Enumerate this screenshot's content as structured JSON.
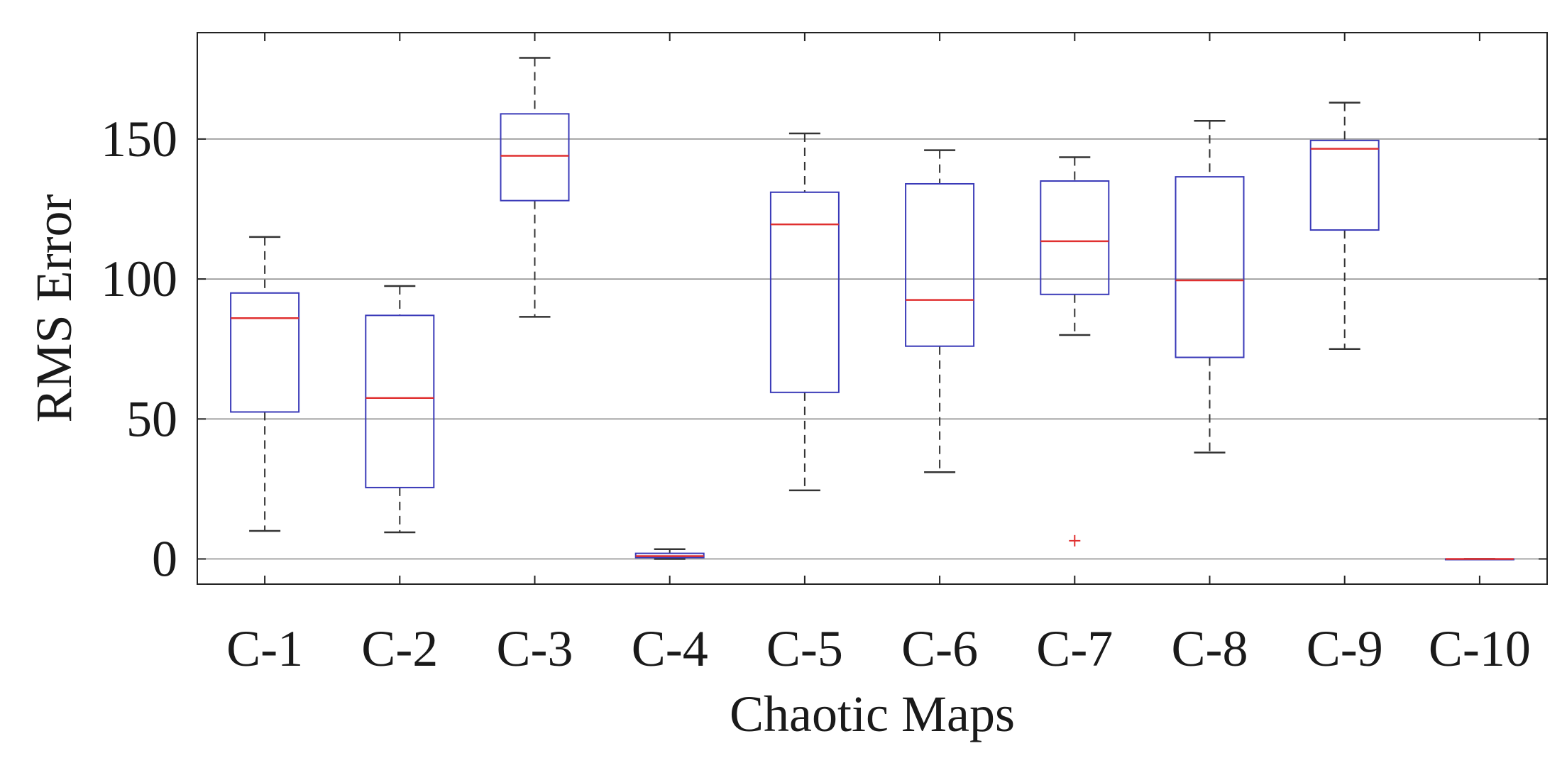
{
  "chart_data": {
    "type": "box",
    "title": "",
    "xlabel": "Chaotic Maps",
    "ylabel": "RMS Error",
    "ylim": [
      -9,
      188
    ],
    "yticks": [
      0,
      50,
      100,
      150
    ],
    "grid": "horizontal",
    "colors": {
      "box": "#3a3ab8",
      "median": "#e03030",
      "whisker": "#333333",
      "outlier": "#e03030",
      "grid": "#888888",
      "axis": "#222222"
    },
    "categories": [
      "C-1",
      "C-2",
      "C-3",
      "C-4",
      "C-5",
      "C-6",
      "C-7",
      "C-8",
      "C-9",
      "C-10"
    ],
    "boxes": [
      {
        "label": "C-1",
        "min": 10,
        "q1": 52.5,
        "median": 86,
        "q3": 95,
        "max": 115,
        "outliers": []
      },
      {
        "label": "C-2",
        "min": 9.5,
        "q1": 25.5,
        "median": 57.5,
        "q3": 87,
        "max": 97.5,
        "outliers": []
      },
      {
        "label": "C-3",
        "min": 86.5,
        "q1": 128,
        "median": 144,
        "q3": 159,
        "max": 179,
        "outliers": []
      },
      {
        "label": "C-4",
        "min": 0,
        "q1": 0.5,
        "median": 1,
        "q3": 2,
        "max": 3.5,
        "outliers": []
      },
      {
        "label": "C-5",
        "min": 24.5,
        "q1": 59.5,
        "median": 119.5,
        "q3": 131,
        "max": 152,
        "outliers": []
      },
      {
        "label": "C-6",
        "min": 31,
        "q1": 76,
        "median": 92.5,
        "q3": 134,
        "max": 146,
        "outliers": []
      },
      {
        "label": "C-7",
        "min": 80,
        "q1": 94.5,
        "median": 113.5,
        "q3": 135,
        "max": 143.5,
        "outliers": [
          6.5
        ]
      },
      {
        "label": "C-8",
        "min": 38,
        "q1": 72,
        "median": 99.5,
        "q3": 136.5,
        "max": 156.5,
        "outliers": []
      },
      {
        "label": "C-9",
        "min": 75,
        "q1": 117.5,
        "median": 146.5,
        "q3": 149.5,
        "max": 163,
        "outliers": []
      },
      {
        "label": "C-10",
        "min": 0,
        "q1": 0,
        "median": 0,
        "q3": 0,
        "max": 0,
        "outliers": []
      }
    ]
  }
}
